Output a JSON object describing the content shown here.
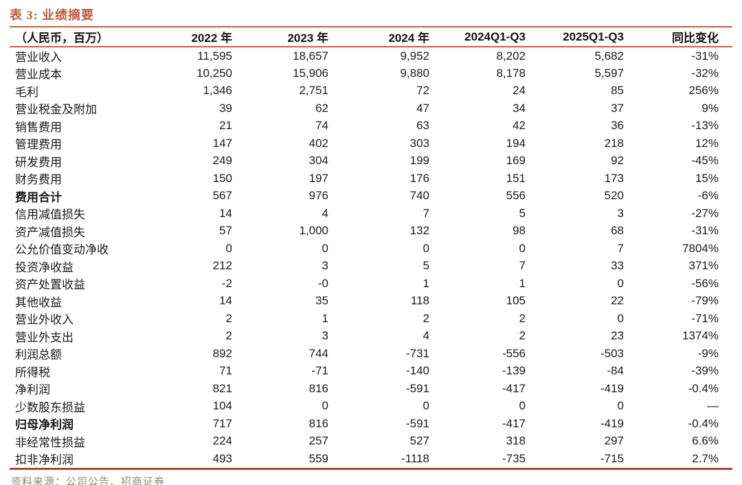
{
  "title": "表 3:  业绩摘要",
  "colors": {
    "accent_title": "#bf5a41",
    "rule_thin": "#c2614a",
    "rule_thick": "#a34a36",
    "source_text": "#8e857a",
    "body_text": "#1a1a1a"
  },
  "table": {
    "unit_header": "（人民币，百万）",
    "columns": [
      "2022 年",
      "2023 年",
      "2024 年",
      "2024Q1-Q3",
      "2025Q1-Q3",
      "同比变化"
    ],
    "rows": [
      {
        "label": "营业收入",
        "bold": false,
        "values": [
          "11,595",
          "18,657",
          "9,952",
          "8,202",
          "5,682",
          "-31%"
        ]
      },
      {
        "label": "营业成本",
        "bold": false,
        "values": [
          "10,250",
          "15,906",
          "9,880",
          "8,178",
          "5,597",
          "-32%"
        ]
      },
      {
        "label": "毛利",
        "bold": false,
        "values": [
          "1,346",
          "2,751",
          "72",
          "24",
          "85",
          "256%"
        ]
      },
      {
        "label": "营业税金及附加",
        "bold": false,
        "values": [
          "39",
          "62",
          "47",
          "34",
          "37",
          "9%"
        ]
      },
      {
        "label": "销售费用",
        "bold": false,
        "values": [
          "21",
          "74",
          "63",
          "42",
          "36",
          "-13%"
        ]
      },
      {
        "label": "管理费用",
        "bold": false,
        "values": [
          "147",
          "402",
          "303",
          "194",
          "218",
          "12%"
        ]
      },
      {
        "label": "研发费用",
        "bold": false,
        "values": [
          "249",
          "304",
          "199",
          "169",
          "92",
          "-45%"
        ]
      },
      {
        "label": "财务费用",
        "bold": false,
        "values": [
          "150",
          "197",
          "176",
          "151",
          "173",
          "15%"
        ]
      },
      {
        "label": "费用合计",
        "bold": true,
        "values": [
          "567",
          "976",
          "740",
          "556",
          "520",
          "-6%"
        ]
      },
      {
        "label": "信用减值损失",
        "bold": false,
        "values": [
          "14",
          "4",
          "7",
          "5",
          "3",
          "-27%"
        ]
      },
      {
        "label": "资产减值损失",
        "bold": false,
        "values": [
          "57",
          "1,000",
          "132",
          "98",
          "68",
          "-31%"
        ]
      },
      {
        "label": "公允价值变动净收",
        "bold": false,
        "values": [
          "0",
          "0",
          "0",
          "0",
          "7",
          "7804%"
        ]
      },
      {
        "label": "投资净收益",
        "bold": false,
        "values": [
          "212",
          "3",
          "5",
          "7",
          "33",
          "371%"
        ]
      },
      {
        "label": "资产处置收益",
        "bold": false,
        "values": [
          "-2",
          "-0",
          "1",
          "1",
          "0",
          "-56%"
        ]
      },
      {
        "label": "其他收益",
        "bold": false,
        "values": [
          "14",
          "35",
          "118",
          "105",
          "22",
          "-79%"
        ]
      },
      {
        "label": "营业外收入",
        "bold": false,
        "values": [
          "2",
          "1",
          "2",
          "2",
          "0",
          "-71%"
        ]
      },
      {
        "label": "营业外支出",
        "bold": false,
        "values": [
          "2",
          "3",
          "4",
          "2",
          "23",
          "1374%"
        ]
      },
      {
        "label": "利润总额",
        "bold": false,
        "values": [
          "892",
          "744",
          "-731",
          "-556",
          "-503",
          "-9%"
        ]
      },
      {
        "label": "所得税",
        "bold": false,
        "values": [
          "71",
          "-71",
          "-140",
          "-139",
          "-84",
          "-39%"
        ]
      },
      {
        "label": "净利润",
        "bold": false,
        "values": [
          "821",
          "816",
          "-591",
          "-417",
          "-419",
          "-0.4%"
        ]
      },
      {
        "label": "少数股东损益",
        "bold": false,
        "values": [
          "104",
          "0",
          "0",
          "0",
          "0",
          "—"
        ]
      },
      {
        "label": "归母净利润",
        "bold": true,
        "values": [
          "717",
          "816",
          "-591",
          "-417",
          "-419",
          "-0.4%"
        ]
      },
      {
        "label": "非经常性损益",
        "bold": false,
        "values": [
          "224",
          "257",
          "527",
          "318",
          "297",
          "6.6%"
        ]
      },
      {
        "label": "扣非净利润",
        "bold": false,
        "values": [
          "493",
          "559",
          "-1118",
          "-735",
          "-715",
          "2.7%"
        ]
      }
    ]
  },
  "footer": {
    "source": "资料来源：公司公告、招商证券"
  }
}
